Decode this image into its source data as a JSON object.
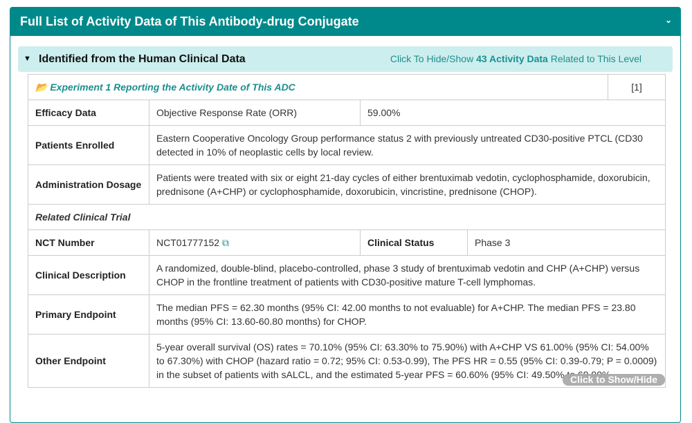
{
  "panel": {
    "title": "Full List of Activity Data of This Antibody-drug Conjugate",
    "collapse_icon": "double-chevron-down"
  },
  "section": {
    "title": "Identified from the Human Clinical Data",
    "toggle_prefix": "Click To Hide/Show ",
    "toggle_count": "43 Activity Data",
    "toggle_suffix": " Related to This Level"
  },
  "experiment": {
    "title": "Experiment 1 Reporting the Activity Date of This ADC",
    "ref": "[1]"
  },
  "rows": {
    "efficacy": {
      "label": "Efficacy Data",
      "value": "Objective Response Rate (ORR)",
      "value2": "59.00%"
    },
    "patients": {
      "label": "Patients Enrolled",
      "value": "Eastern Cooperative Oncology Group performance status 2 with previously untreated CD30-positive PTCL (CD30 detected in 10% of neoplastic cells by local review."
    },
    "admin": {
      "label": "Administration Dosage",
      "value": "Patients were treated with six or eight 21-day cycles of either brentuximab vedotin, cyclophosphamide, doxorubicin, prednisone (A+CHP) or cyclophosphamide, doxorubicin, vincristine, prednisone (CHOP)."
    },
    "related": {
      "label": "Related Clinical Trial"
    },
    "nct": {
      "label": "NCT Number",
      "value": "NCT01777152",
      "status_label": "Clinical Status",
      "status": "Phase 3"
    },
    "desc": {
      "label": "Clinical Description",
      "value": "A randomized, double-blind, placebo-controlled, phase 3 study of brentuximab vedotin and CHP (A+CHP) versus CHOP in the frontline treatment of patients with CD30-positive mature T-cell lymphomas."
    },
    "primary": {
      "label": "Primary Endpoint",
      "value": "The median PFS = 62.30 months (95% CI: 42.00 months to not evaluable) for A+CHP. The median PFS = 23.80 months (95% CI: 13.60-60.80 months) for CHOP."
    },
    "other": {
      "label": "Other Endpoint",
      "value": "5-year overall survival (OS) rates = 70.10% (95% CI: 63.30% to 75.90%) with A+CHP VS 61.00% (95% CI: 54.00% to 67.30%) with CHOP (hazard ratio = 0.72; 95% CI: 0.53-0.99), The PFS HR = 0.55 (95% CI: 0.39-0.79; P = 0.0009) in the subset of patients with sALCL, and the estimated 5-year PFS = 60.60% (95% CI: 49.50% to 69.90%"
    }
  },
  "overlay": {
    "label": "Click to Show/Hide"
  }
}
